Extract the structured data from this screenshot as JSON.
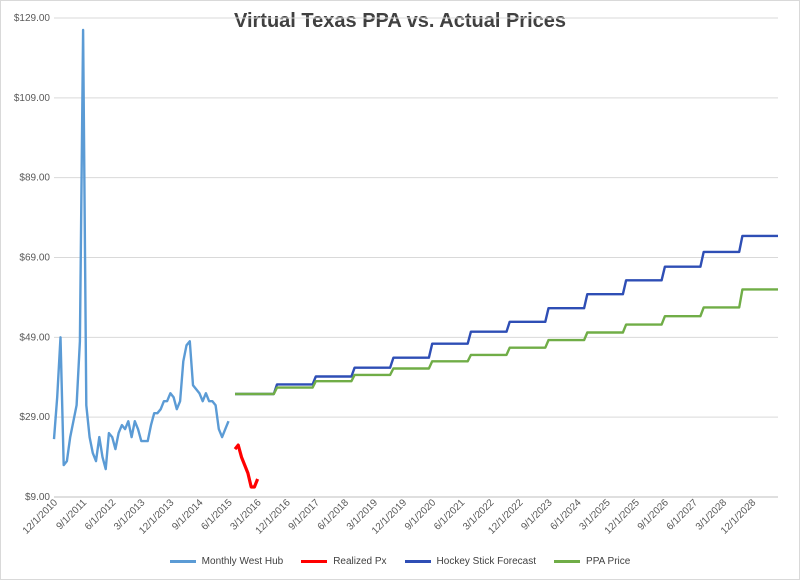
{
  "chart_data": {
    "type": "line",
    "title": "Virtual Texas PPA vs. Actual Prices",
    "xlabel": "",
    "ylabel": "",
    "ylim": [
      9,
      129
    ],
    "y_ticks": [
      "$9.00",
      "$29.00",
      "$49.00",
      "$69.00",
      "$89.00",
      "$109.00",
      "$129.00"
    ],
    "x_ticks": [
      "12/1/2010",
      "9/1/2011",
      "6/1/2012",
      "3/1/2013",
      "12/1/2013",
      "9/1/2014",
      "6/1/2015",
      "3/1/2016",
      "12/1/2016",
      "9/1/2017",
      "6/1/2018",
      "3/1/2019",
      "12/1/2019",
      "9/1/2020",
      "6/1/2021",
      "3/1/2022",
      "12/1/2022",
      "9/1/2023",
      "6/1/2024",
      "3/1/2025",
      "12/1/2025",
      "9/1/2026",
      "6/1/2027",
      "3/1/2028",
      "12/1/2028"
    ],
    "grid": "horizontal",
    "legend_position": "bottom",
    "series": [
      {
        "name": "Monthly West Hub",
        "color": "#5b9bd5",
        "points": [
          [
            "2010-12",
            23.5
          ],
          [
            "2011-01",
            34
          ],
          [
            "2011-02",
            49
          ],
          [
            "2011-03",
            17
          ],
          [
            "2011-04",
            18
          ],
          [
            "2011-05",
            24
          ],
          [
            "2011-06",
            28
          ],
          [
            "2011-07",
            32
          ],
          [
            "2011-08",
            48
          ],
          [
            "2011-09",
            126
          ],
          [
            "2011-10",
            32
          ],
          [
            "2011-11",
            24
          ],
          [
            "2011-12",
            20
          ],
          [
            "2012-01",
            18
          ],
          [
            "2012-02",
            24
          ],
          [
            "2012-03",
            19
          ],
          [
            "2012-04",
            16
          ],
          [
            "2012-05",
            25
          ],
          [
            "2012-06",
            24
          ],
          [
            "2012-07",
            21
          ],
          [
            "2012-08",
            25
          ],
          [
            "2012-09",
            27
          ],
          [
            "2012-10",
            26
          ],
          [
            "2012-11",
            28
          ],
          [
            "2012-12",
            24
          ],
          [
            "2013-01",
            28
          ],
          [
            "2013-02",
            26
          ],
          [
            "2013-03",
            23
          ],
          [
            "2013-04",
            23
          ],
          [
            "2013-05",
            23
          ],
          [
            "2013-06",
            27
          ],
          [
            "2013-07",
            30
          ],
          [
            "2013-08",
            30
          ],
          [
            "2013-09",
            31
          ],
          [
            "2013-10",
            33
          ],
          [
            "2013-11",
            33
          ],
          [
            "2013-12",
            35
          ],
          [
            "2014-01",
            34
          ],
          [
            "2014-02",
            31
          ],
          [
            "2014-03",
            33
          ],
          [
            "2014-04",
            43
          ],
          [
            "2014-05",
            47
          ],
          [
            "2014-06",
            48
          ],
          [
            "2014-07",
            37
          ],
          [
            "2014-08",
            36
          ],
          [
            "2014-09",
            35
          ],
          [
            "2014-10",
            33
          ],
          [
            "2014-11",
            35
          ],
          [
            "2014-12",
            33
          ],
          [
            "2015-01",
            33
          ],
          [
            "2015-02",
            32
          ],
          [
            "2015-03",
            26
          ],
          [
            "2015-04",
            24
          ],
          [
            "2015-05",
            26
          ],
          [
            "2015-06",
            28
          ]
        ],
        "values": []
      },
      {
        "name": "Realized Px",
        "color": "#ff0000",
        "points": [
          [
            "2015-08",
            21
          ],
          [
            "2015-09",
            22
          ],
          [
            "2015-10",
            19
          ],
          [
            "2015-11",
            17
          ],
          [
            "2015-12",
            15
          ],
          [
            "2016-01",
            11.5
          ],
          [
            "2016-02",
            11.5
          ],
          [
            "2016-03",
            13.5
          ]
        ],
        "values": []
      },
      {
        "name": "Hockey Stick Forecast",
        "color": "#2e4eb5",
        "points": [
          [
            "2015-08",
            34.8
          ],
          [
            "2016-08",
            34.8
          ],
          [
            "2016-09",
            37.2
          ],
          [
            "2017-08",
            37.2
          ],
          [
            "2017-09",
            39.2
          ],
          [
            "2018-08",
            39.2
          ],
          [
            "2018-09",
            41.4
          ],
          [
            "2019-08",
            41.4
          ],
          [
            "2019-09",
            43.9
          ],
          [
            "2020-08",
            43.9
          ],
          [
            "2020-09",
            47.4
          ],
          [
            "2021-08",
            47.4
          ],
          [
            "2021-09",
            50.4
          ],
          [
            "2022-08",
            50.4
          ],
          [
            "2022-09",
            52.9
          ],
          [
            "2023-08",
            52.9
          ],
          [
            "2023-09",
            56.3
          ],
          [
            "2024-08",
            56.3
          ],
          [
            "2024-09",
            59.8
          ],
          [
            "2025-08",
            59.8
          ],
          [
            "2025-09",
            63.3
          ],
          [
            "2026-08",
            63.3
          ],
          [
            "2026-09",
            66.7
          ],
          [
            "2027-08",
            66.7
          ],
          [
            "2027-09",
            70.4
          ],
          [
            "2028-08",
            70.4
          ],
          [
            "2028-09",
            74.4
          ],
          [
            "2029-08",
            74.4
          ]
        ],
        "values": []
      },
      {
        "name": "PPA Price",
        "color": "#70ad47",
        "points": [
          [
            "2015-08",
            34.8
          ],
          [
            "2016-08",
            34.8
          ],
          [
            "2016-09",
            36.4
          ],
          [
            "2017-08",
            36.4
          ],
          [
            "2017-09",
            38
          ],
          [
            "2018-08",
            38
          ],
          [
            "2018-09",
            39.6
          ],
          [
            "2019-08",
            39.6
          ],
          [
            "2019-09",
            41.2
          ],
          [
            "2020-08",
            41.2
          ],
          [
            "2020-09",
            43
          ],
          [
            "2021-08",
            43
          ],
          [
            "2021-09",
            44.6
          ],
          [
            "2022-08",
            44.6
          ],
          [
            "2022-09",
            46.4
          ],
          [
            "2023-08",
            46.4
          ],
          [
            "2023-09",
            48.3
          ],
          [
            "2024-08",
            48.3
          ],
          [
            "2024-09",
            50.2
          ],
          [
            "2025-08",
            50.2
          ],
          [
            "2025-09",
            52.2
          ],
          [
            "2026-08",
            52.2
          ],
          [
            "2026-09",
            54.3
          ],
          [
            "2027-08",
            54.3
          ],
          [
            "2027-09",
            56.5
          ],
          [
            "2028-08",
            56.5
          ],
          [
            "2028-09",
            61
          ],
          [
            "2029-08",
            61
          ]
        ],
        "values": []
      }
    ]
  }
}
